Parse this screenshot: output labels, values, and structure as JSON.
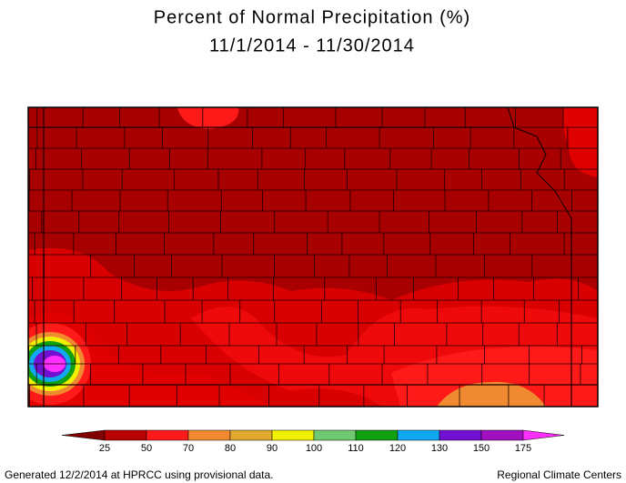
{
  "title": [
    "Percent of Normal Precipitation (%)",
    "11/1/2014 - 11/30/2014"
  ],
  "legend": {
    "labels": [
      25,
      50,
      70,
      80,
      90,
      100,
      110,
      120,
      130,
      150,
      175
    ],
    "colors": [
      "#800000",
      "#b80000",
      "#ff1a1a",
      "#f08a30",
      "#e0aa30",
      "#f0f000",
      "#70c870",
      "#10a010",
      "#10a8f0",
      "#7010d0",
      "#a010c0",
      "#ff30ff"
    ]
  },
  "footer": {
    "left": "Generated 12/2/2014 at HPRCC using provisional data.",
    "right": "Regional Climate Centers"
  }
}
